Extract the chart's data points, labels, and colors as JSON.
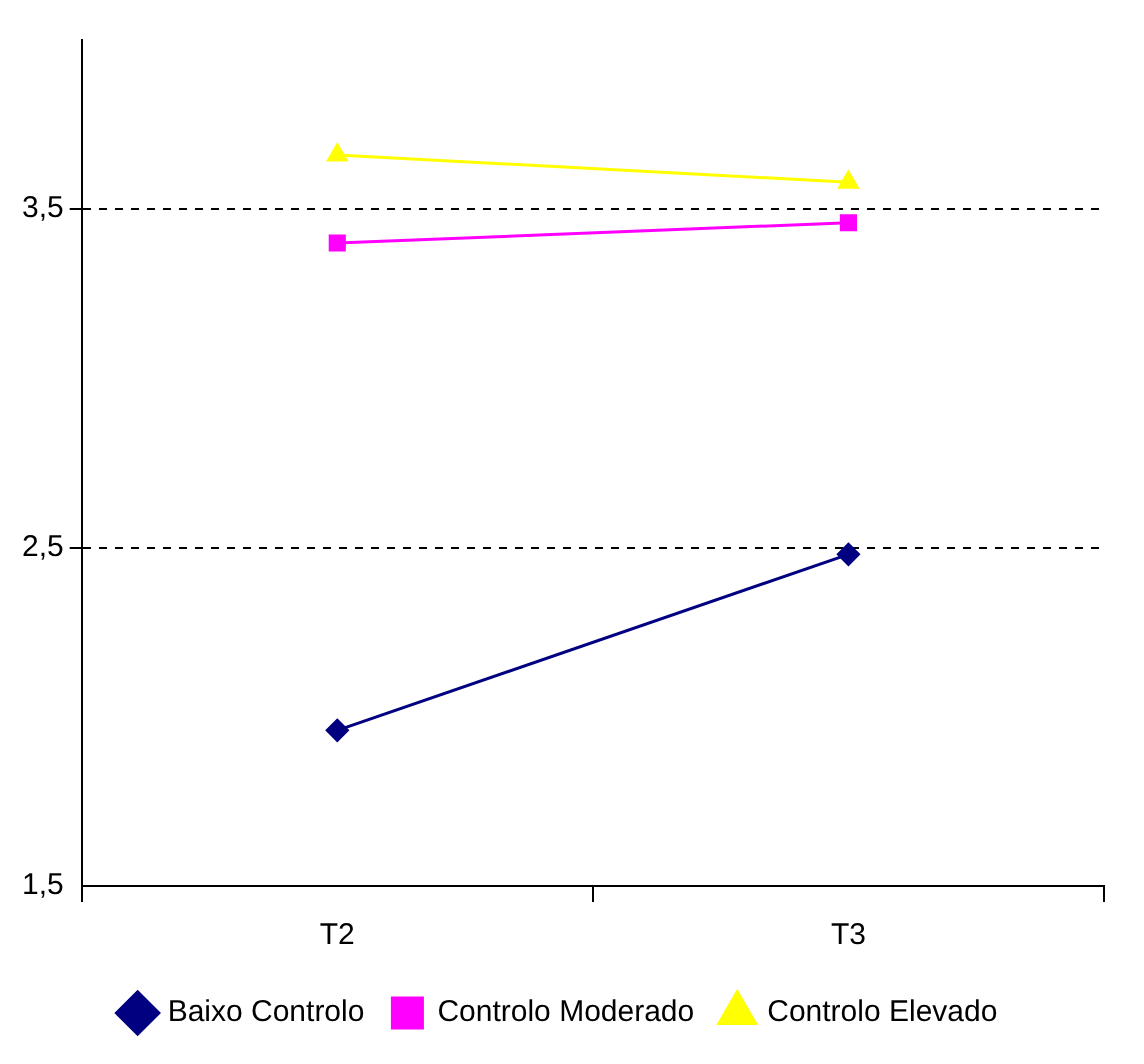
{
  "chart_data": {
    "type": "line",
    "categories": [
      "T2",
      "T3"
    ],
    "series": [
      {
        "name": "Baixo Controlo",
        "color": "#000080",
        "values": [
          1.96,
          2.48
        ],
        "marker": "diamond"
      },
      {
        "name": "Controlo Moderado",
        "color": "#ff00ff",
        "values": [
          3.4,
          3.46
        ],
        "marker": "square"
      },
      {
        "name": "Controlo Elevado",
        "color": "#ffff00",
        "values": [
          3.66,
          3.58
        ],
        "marker": "triangle"
      }
    ],
    "ylim": [
      1.5,
      4
    ],
    "yticks": [
      {
        "value": 1.5,
        "label": "1,5"
      },
      {
        "value": 2.5,
        "label": "2,5"
      },
      {
        "value": 3.5,
        "label": "3,5"
      }
    ],
    "grid": "y",
    "legend": "bottom",
    "line_style": "solid"
  }
}
